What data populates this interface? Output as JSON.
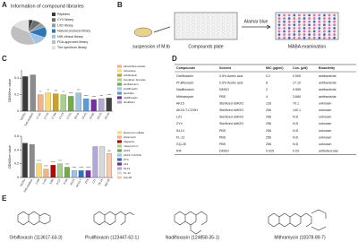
{
  "panel_a": {
    "label": "A",
    "chart_data": {
      "type": "pie",
      "title": "Information of compound libraries",
      "categories": [
        "Peptides",
        "CYX library",
        "LXD library",
        "Natural products library",
        "NIH clinical library",
        "FDA-approved library",
        "The spectrum library"
      ],
      "values": [
        4,
        8,
        6,
        14,
        12,
        40,
        16
      ],
      "colors": [
        "#3a3a3a",
        "#6d6d6d",
        "#9a9a9a",
        "#2e75b6",
        "#9dc3e6",
        "#bfbfbf",
        "#e0e0e0"
      ]
    }
  },
  "panel_b": {
    "label": "B",
    "suspension": "suspension of M.tb",
    "reagent": "Alamar blue",
    "plate1": "Compounds plate",
    "plate2": "MABA examination"
  },
  "panel_c": {
    "label": "C",
    "chart_data": [
      {
        "type": "bar",
        "ylabel": "OD600nm value",
        "ylim": [
          0,
          0.5
        ],
        "yticks": [
          0,
          0.2,
          0.4
        ],
        "categories": [
          "H37Rv",
          "7H9 medium",
          "17-A2",
          "17-A3",
          "17-B4",
          "17-C5",
          "17-D1",
          "18-A4",
          "19-A1",
          "19-B2",
          "19-C5",
          "20-A3"
        ],
        "values": [
          0.42,
          0.44,
          0.2,
          0.22,
          0.21,
          0.2,
          0.18,
          0.22,
          0.15,
          0.14,
          0.15,
          0.16
        ],
        "colors": [
          "#3a3a3a",
          "#8c8c8c",
          "#f4b183",
          "#ffd966",
          "#c9a227",
          "#a9d18e",
          "#70ad47",
          "#9dc3e6",
          "#5b9bd5",
          "#7030a0",
          "#b4a7d6",
          "#404040"
        ],
        "significance": [
          null,
          null,
          "**",
          "**",
          "***",
          "**",
          "****",
          "***",
          "****",
          "****",
          "***",
          "****"
        ],
        "legend": [
          "ethacridine lactate",
          "nitroxoline",
          "orbifloxacin",
          "homidium bromide",
          "acriflavinium",
          "prulifloxacin",
          "alexidine",
          "nadifloxacin",
          "disulfiram"
        ]
      },
      {
        "type": "bar",
        "ylabel": "OD600nm value",
        "ylim": [
          0,
          0.6
        ],
        "yticks": [
          0,
          0.2,
          0.4,
          0.6
        ],
        "categories": [
          "H37Rv",
          "7H9 medium",
          "1-G8",
          "2-A9",
          "3-B6",
          "4-G7",
          "5-H4",
          "AK15",
          "AK15-T",
          "ZY4",
          "LZ1",
          "IN-14",
          "GQ-28"
        ],
        "values": [
          0.5,
          0.48,
          0.2,
          0.12,
          0.18,
          0.2,
          0.15,
          0.1,
          0.1,
          0.1,
          0.45,
          0.45,
          0.35
        ],
        "colors": [
          "#3a3a3a",
          "#8c8c8c",
          "#ffd966",
          "#f4b183",
          "#c00000",
          "#a9d18e",
          "#70ad47",
          "#9dc3e6",
          "#2e75b6",
          "#7030a0",
          "#b4a7d6",
          "#d9d9d9",
          "#f8cbad"
        ],
        "significance": [
          null,
          null,
          "****",
          "****",
          "****",
          "***",
          "****",
          "****",
          "****",
          "****",
          null,
          null,
          "ns"
        ],
        "legend": [
          "bleomycin sulfate",
          "plicamycin",
          "rifapentin",
          "mitomycin C",
          "AK15",
          "AK15-T-COOH",
          "ZY4",
          "LZ1",
          "IN-14",
          "FL-12",
          "GQ-28"
        ]
      }
    ]
  },
  "panel_d": {
    "label": "D",
    "table": {
      "header": [
        "Compounds",
        "Solvent",
        "MIC (μg/ml)",
        "Con. (μM)",
        "Bioactivity"
      ],
      "rows": [
        [
          "Orbifloxacin",
          "0.5% Acetic acid",
          "0.2",
          "0.505",
          "antibacterial"
        ],
        [
          "Prulifloxacin",
          "0.5% Acetic acid",
          "8",
          "17.10",
          "antibacterial"
        ],
        [
          "Nadifloxacin",
          "DMSO",
          "2",
          "0.555",
          "antibacterial"
        ],
        [
          "Mithramycin",
          "PBS",
          "4",
          "3.680",
          "antibacterial"
        ],
        [
          "AK15",
          "Sterilized ddH2O",
          "128",
          "70.1",
          "unknown"
        ],
        [
          "AK15-T-COOH",
          "Sterilized ddH2O",
          "256",
          "140.1",
          "unknown"
        ],
        [
          "LZ1",
          "Sterilized ddH2O",
          "256",
          "N.D",
          "unknown"
        ],
        [
          "ZY4",
          "Sterilized ddH2O",
          "256",
          "N.D",
          "unknown"
        ],
        [
          "IN-14",
          "PBS",
          "256",
          "N.D",
          "unknown"
        ],
        [
          "FL-12",
          "PBS",
          "256",
          "N.D",
          "unknown"
        ],
        [
          "GQ-28",
          "PBS",
          "256",
          "N.D",
          "unknown"
        ],
        [
          "RIF",
          "DMSO",
          "0.025",
          "0.03",
          "antitubercular"
        ]
      ]
    }
  },
  "panel_e": {
    "label": "E",
    "compounds": [
      "Orbifloxacin (113617-63-3)",
      "Prulifloxacin (123447-62-1)",
      "Nadifloxacin (124858-35-1)",
      "Mithramycin (18378-89-7)"
    ]
  }
}
